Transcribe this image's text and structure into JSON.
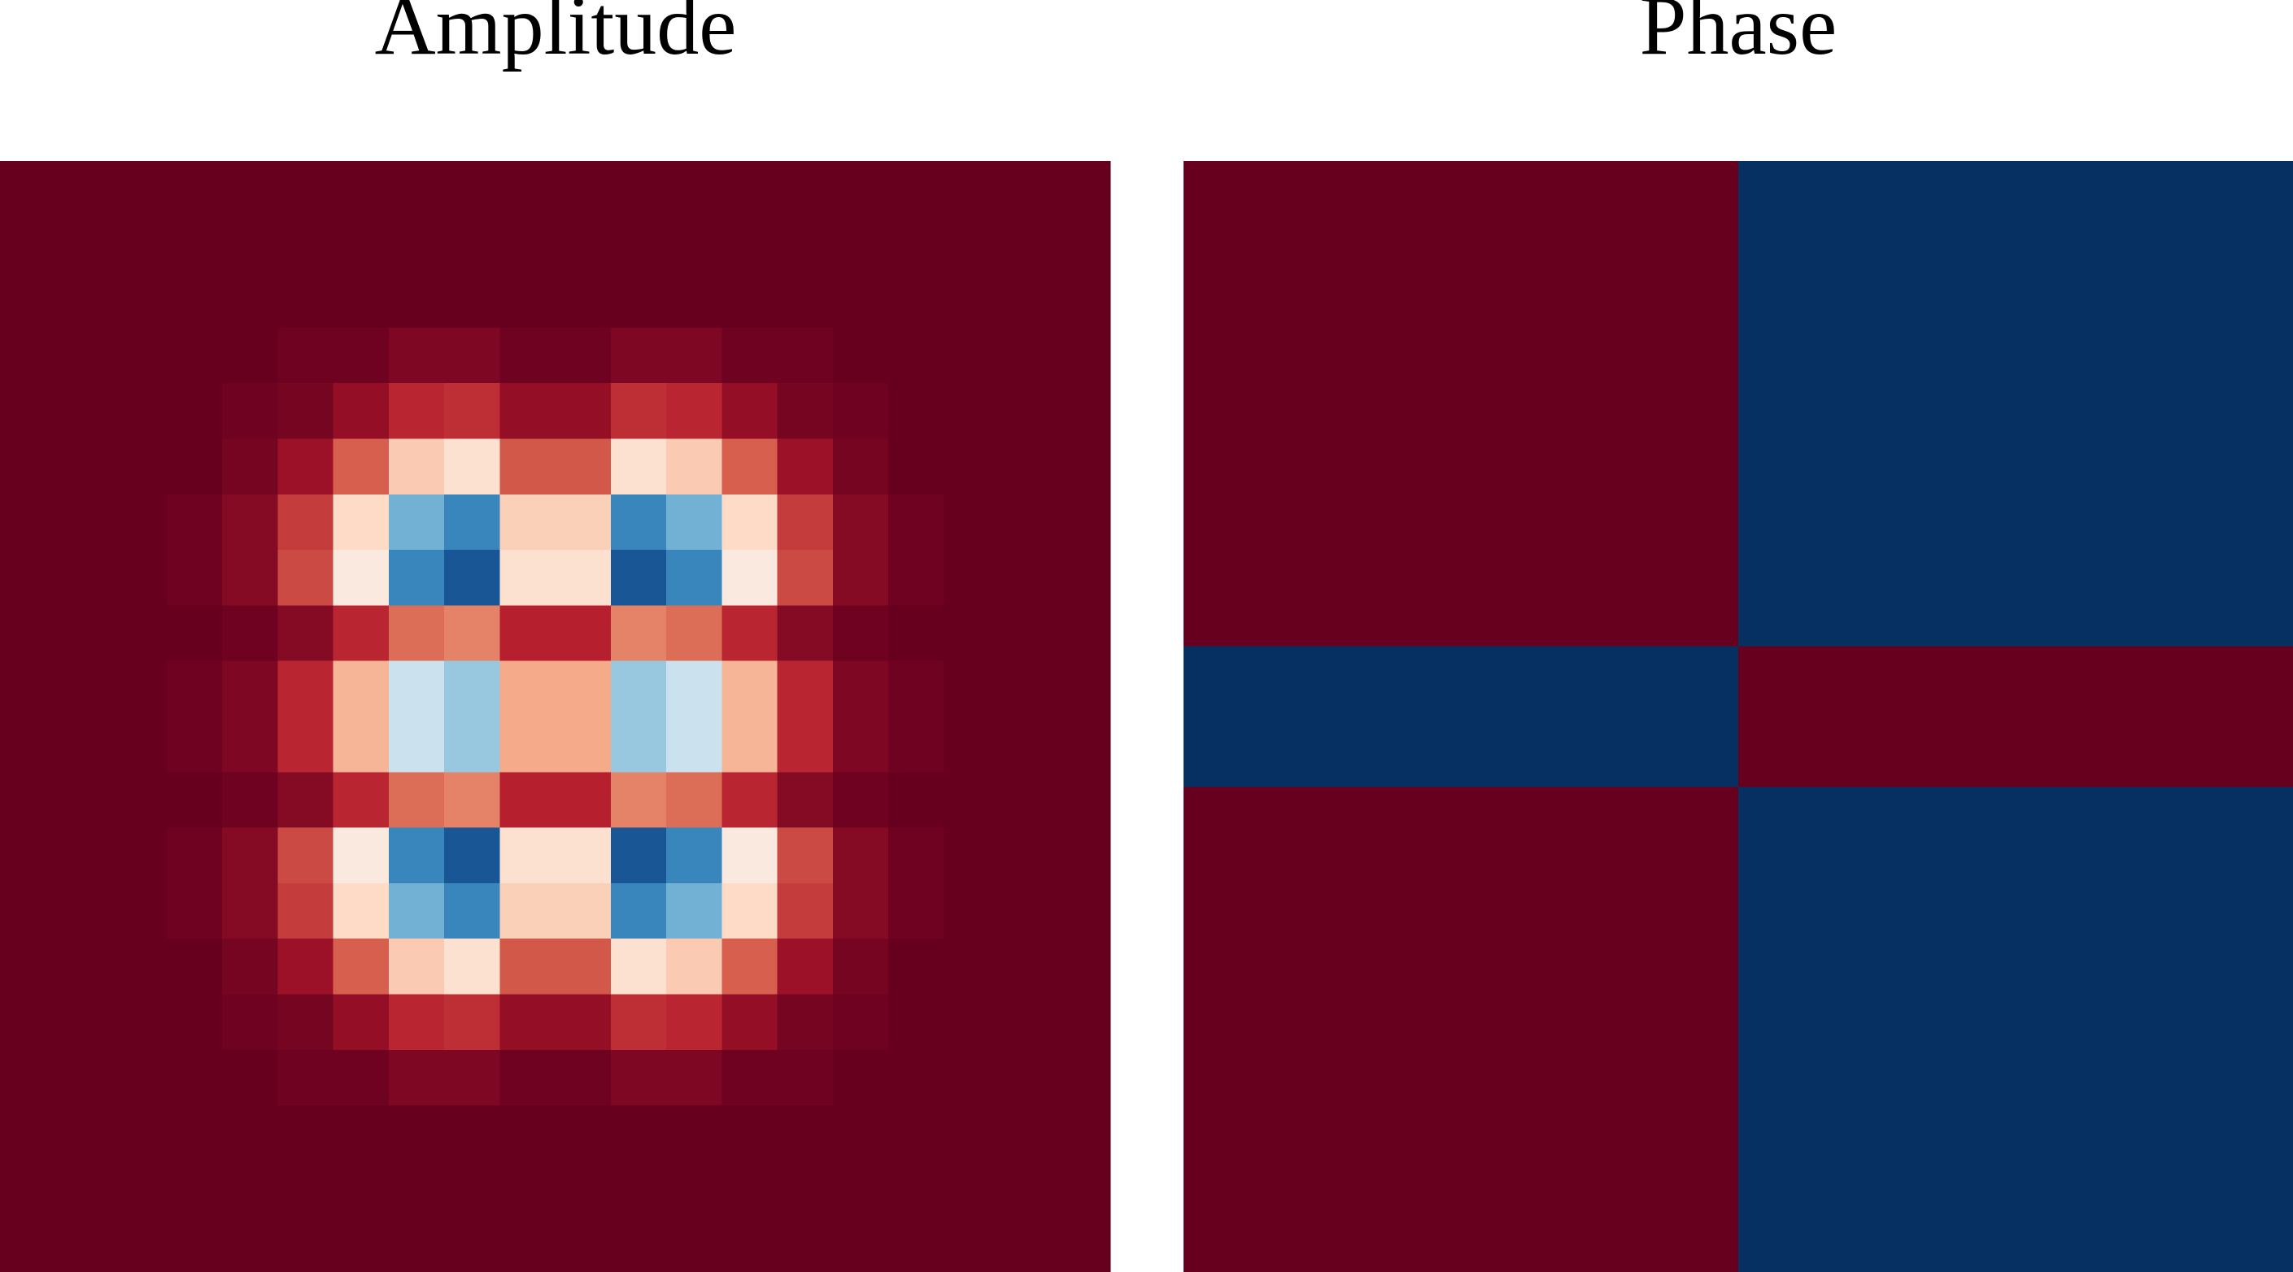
{
  "chart_data": [
    {
      "type": "heatmap",
      "title": "Amplitude",
      "xlim": [
        -5.6,
        5.6
      ],
      "ylim": [
        -5.6,
        5.6
      ],
      "zlim": [
        0,
        1
      ],
      "colorscale": [
        "#67001f",
        "#b2182b",
        "#d6604d",
        "#f4a582",
        "#fddbc7",
        "#f7f7f7",
        "#d1e5f0",
        "#92c5de",
        "#4393c3",
        "#2166ac",
        "#053061"
      ],
      "values": [
        [
          0,
          0,
          0,
          0,
          0,
          0,
          0,
          0,
          0,
          0,
          0,
          0,
          0,
          0,
          0,
          0,
          0,
          0,
          0,
          0
        ],
        [
          0,
          0,
          0,
          0,
          0,
          0,
          0,
          0,
          0,
          0,
          0,
          0,
          0,
          0,
          0,
          0,
          0,
          0,
          0,
          0
        ],
        [
          0,
          0,
          0,
          0,
          0,
          0,
          0,
          0,
          0,
          0,
          0,
          0,
          0,
          0,
          0,
          0,
          0,
          0,
          0,
          0
        ],
        [
          0,
          0,
          0,
          0,
          0,
          0.01,
          0.01,
          0.03,
          0.03,
          0.01,
          0.01,
          0.03,
          0.03,
          0.01,
          0.01,
          0,
          0,
          0,
          0,
          0
        ],
        [
          0,
          0,
          0,
          0,
          0.01,
          0.02,
          0.06,
          0.12,
          0.13,
          0.06,
          0.06,
          0.13,
          0.12,
          0.06,
          0.02,
          0.01,
          0,
          0,
          0,
          0
        ],
        [
          0,
          0,
          0,
          0,
          0.02,
          0.07,
          0.2,
          0.37,
          0.42,
          0.19,
          0.19,
          0.42,
          0.37,
          0.2,
          0.07,
          0.02,
          0,
          0,
          0,
          0
        ],
        [
          0,
          0,
          0,
          0.01,
          0.04,
          0.15,
          0.4,
          0.74,
          0.83,
          0.38,
          0.38,
          0.83,
          0.74,
          0.4,
          0.15,
          0.04,
          0.01,
          0,
          0,
          0
        ],
        [
          0,
          0,
          0,
          0.01,
          0.04,
          0.17,
          0.45,
          0.83,
          0.93,
          0.42,
          0.42,
          0.93,
          0.83,
          0.45,
          0.17,
          0.04,
          0.01,
          0,
          0,
          0
        ],
        [
          0,
          0,
          0,
          0,
          0.01,
          0.04,
          0.12,
          0.22,
          0.25,
          0.11,
          0.11,
          0.25,
          0.22,
          0.12,
          0.04,
          0.01,
          0,
          0,
          0,
          0
        ],
        [
          0,
          0,
          0,
          0.01,
          0.03,
          0.12,
          0.33,
          0.61,
          0.69,
          0.31,
          0.31,
          0.69,
          0.61,
          0.33,
          0.12,
          0.03,
          0.01,
          0,
          0,
          0
        ],
        [
          0,
          0,
          0,
          0.01,
          0.03,
          0.12,
          0.33,
          0.61,
          0.69,
          0.31,
          0.31,
          0.69,
          0.61,
          0.33,
          0.12,
          0.03,
          0.01,
          0,
          0,
          0
        ],
        [
          0,
          0,
          0,
          0,
          0.01,
          0.04,
          0.12,
          0.22,
          0.25,
          0.11,
          0.11,
          0.25,
          0.22,
          0.12,
          0.04,
          0.01,
          0,
          0,
          0,
          0
        ],
        [
          0,
          0,
          0,
          0.01,
          0.04,
          0.17,
          0.45,
          0.83,
          0.93,
          0.42,
          0.42,
          0.93,
          0.83,
          0.45,
          0.17,
          0.04,
          0.01,
          0,
          0,
          0
        ],
        [
          0,
          0,
          0,
          0.01,
          0.04,
          0.15,
          0.4,
          0.74,
          0.83,
          0.38,
          0.38,
          0.83,
          0.74,
          0.4,
          0.15,
          0.04,
          0.01,
          0,
          0,
          0
        ],
        [
          0,
          0,
          0,
          0,
          0.02,
          0.07,
          0.2,
          0.37,
          0.42,
          0.19,
          0.19,
          0.42,
          0.37,
          0.2,
          0.07,
          0.02,
          0,
          0,
          0,
          0
        ],
        [
          0,
          0,
          0,
          0,
          0.01,
          0.02,
          0.06,
          0.12,
          0.13,
          0.06,
          0.06,
          0.13,
          0.12,
          0.06,
          0.02,
          0.01,
          0,
          0,
          0,
          0
        ],
        [
          0,
          0,
          0,
          0,
          0,
          0.01,
          0.01,
          0.03,
          0.03,
          0.01,
          0.01,
          0.03,
          0.03,
          0.01,
          0.01,
          0,
          0,
          0,
          0,
          0
        ],
        [
          0,
          0,
          0,
          0,
          0,
          0,
          0,
          0,
          0,
          0,
          0,
          0,
          0,
          0,
          0,
          0,
          0,
          0,
          0,
          0
        ],
        [
          0,
          0,
          0,
          0,
          0,
          0,
          0,
          0,
          0,
          0,
          0,
          0,
          0,
          0,
          0,
          0,
          0,
          0,
          0,
          0
        ],
        [
          0,
          0,
          0,
          0,
          0,
          0,
          0,
          0,
          0,
          0,
          0,
          0,
          0,
          0,
          0,
          0,
          0,
          0,
          0,
          0
        ]
      ]
    },
    {
      "type": "heatmap",
      "title": "Phase",
      "xlim": [
        -5.6,
        5.6
      ],
      "ylim": [
        -5.6,
        5.6
      ],
      "zlim": [
        0,
        3.14
      ],
      "colorscale": [
        "#67001f",
        "#b2182b",
        "#d6604d",
        "#f4a582",
        "#fddbc7",
        "#f7f7f7",
        "#d1e5f0",
        "#92c5de",
        "#4393c3",
        "#2166ac",
        "#053061"
      ],
      "x_edges": [
        -5.6,
        0,
        5.6
      ],
      "y_edges": [
        -5.6,
        -0.71,
        0.71,
        5.6
      ],
      "values": [
        [
          0,
          3.14
        ],
        [
          3.14,
          0
        ],
        [
          0,
          3.14
        ]
      ]
    }
  ]
}
